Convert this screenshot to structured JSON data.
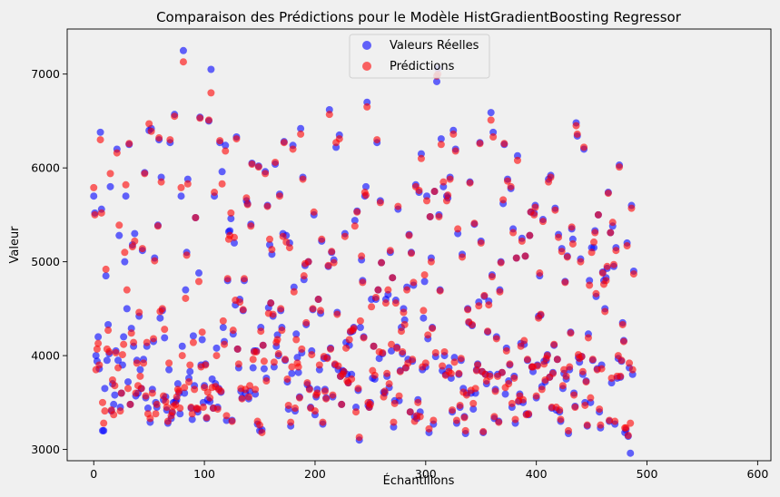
{
  "chart_data": {
    "type": "scatter",
    "title": "Comparaison des Prédictions pour le Modèle HistGradientBoosting Regressor",
    "xlabel": "Échantillons",
    "ylabel": "Valeur",
    "xlim": [
      -24,
      612
    ],
    "ylim": [
      2880,
      7480
    ],
    "xticks": [
      0,
      100,
      200,
      300,
      400,
      500,
      600
    ],
    "yticks": [
      3000,
      4000,
      5000,
      6000,
      7000
    ],
    "grid": false,
    "legend_position": "top-center",
    "series": [
      {
        "name": "Valeurs Réelles",
        "color": "#0000ff",
        "values": [
          5700,
          5520,
          4000,
          3940,
          4200,
          3860,
          6380,
          5560,
          3200,
          3200,
          3650,
          4850,
          3950,
          4330,
          4020,
          5800,
          3410,
          3700,
          3480,
          3580,
          4050,
          6200,
          3950,
          5280,
          3450,
          3600,
          3900,
          4200,
          5000,
          5700,
          4500,
          3720,
          6250,
          3480,
          4290,
          5180,
          4100,
          5300,
          3570,
          3950,
          3600,
          4420,
          3850,
          3650,
          5120,
          3960,
          5950,
          3550,
          4100,
          3440,
          6400,
          3290,
          6420,
          3640,
          4150,
          5040,
          3500,
          3450,
          5390,
          6300,
          4400,
          5900,
          4480,
          3530,
          4190,
          3560,
          3420,
          3280,
          3850,
          6270,
          3330,
          3390,
          3500,
          6570,
          3510,
          3530,
          3700,
          3600,
          3380,
          5700,
          4100,
          7250,
          3600,
          4700,
          5100,
          5880,
          3760,
          3830,
          3440,
          3320,
          4210,
          3680,
          5470,
          3430,
          3400,
          4880,
          6540,
          3900,
          4170,
          3500,
          3680,
          3910,
          3330,
          3530,
          6500,
          3510,
          7050,
          3750,
          3440,
          5700,
          3700,
          4080,
          3450,
          3650,
          6270,
          3610,
          5960,
          4300,
          4150,
          6240,
          3310,
          4800,
          5320,
          5330,
          5460,
          3310,
          4230,
          5200,
          4540,
          6330,
          4070,
          3870,
          4600,
          3620,
          3550,
          4480,
          4800,
          3600,
          5650,
          5620,
          3540,
          3620,
          5400,
          6050,
          3870,
          4050,
          3590,
          4050,
          3270,
          6020,
          3200,
          4300,
          3210,
          4110,
          3860,
          5960,
          3760,
          5600,
          4510,
          5180,
          4560,
          5080,
          4420,
          3880,
          6040,
          4100,
          4220,
          4000,
          5720,
          4480,
          4300,
          5300,
          6280,
          3950,
          5280,
          3720,
          3430,
          5200,
          3250,
          3810,
          6240,
          4730,
          3410,
          4230,
          3980,
          3820,
          3560,
          6420,
          4030,
          5900,
          4810,
          4960,
          4330,
          3690,
          5000,
          3650,
          3450,
          4050,
          4490,
          5500,
          3370,
          3560,
          3640,
          4600,
          3850,
          4450,
          5220,
          3270,
          3970,
          3640,
          3550,
          3980,
          4950,
          6620,
          4080,
          5100,
          3560,
          5020,
          3900,
          6220,
          4460,
          3850,
          6350,
          3780,
          3480,
          3840,
          3830,
          5300,
          4140,
          3800,
          3710,
          4110,
          4250,
          3800,
          4260,
          4300,
          5440,
          3450,
          5540,
          3630,
          3100,
          4300,
          5020,
          4800,
          4200,
          5700,
          5800,
          6700,
          3470,
          3450,
          3500,
          4600,
          3760,
          4100,
          3750,
          4600,
          6270,
          4700,
          3970,
          5650,
          4990,
          4020,
          3610,
          3600,
          4600,
          3780,
          4650,
          3660,
          5100,
          4050,
          4830,
          3240,
          3520,
          4590,
          4090,
          5560,
          3520,
          3840,
          4300,
          4020,
          4500,
          4380,
          3870,
          4730,
          3960,
          5290,
          3400,
          5100,
          3940,
          4750,
          3350,
          5820,
          3330,
          3530,
          5740,
          3400,
          6150,
          3850,
          4400,
          4790,
          3880,
          5700,
          4180,
          3180,
          5480,
          5040,
          4300,
          3270,
          5750,
          3990,
          6920,
          7060,
          5500,
          4700,
          6310,
          3840,
          5800,
          4000,
          3800,
          5700,
          5680,
          3870,
          5900,
          3760,
          3400,
          6400,
          3980,
          6200,
          3280,
          5300,
          3800,
          3450,
          3950,
          5080,
          3650,
          3350,
          3170,
          3600,
          4500,
          4350,
          5850,
          3600,
          4320,
          3430,
          5400,
          3600,
          3850,
          3910,
          4570,
          6270,
          5220,
          3830,
          3180,
          4630,
          3800,
          3700,
          4250,
          4580,
          3800,
          6590,
          4860,
          6380,
          3330,
          3640,
          4200,
          3800,
          3300,
          4700,
          5000,
          3820,
          5620,
          6250,
          3590,
          4080,
          5880,
          3730,
          3900,
          5780,
          3450,
          5350,
          3780,
          3280,
          5040,
          6130,
          3510,
          3590,
          4130,
          5250,
          3500,
          4120,
          5060,
          3380,
          3950,
          3370,
          5280,
          5530,
          3880,
          3830,
          5520,
          5600,
          3550,
          3900,
          4420,
          4850,
          4430,
          3670,
          5450,
          3940,
          3720,
          3950,
          4010,
          5880,
          3770,
          5920,
          3440,
          3820,
          4110,
          5570,
          3420,
          3960,
          5290,
          3400,
          3300,
          5140,
          3650,
          3810,
          4790,
          3750,
          5060,
          3170,
          3850,
          4250,
          5350,
          5240,
          3600,
          3460,
          6480,
          6340,
          3980,
          3930,
          5030,
          3990,
          3800,
          6200,
          3500,
          3730,
          3250,
          4230,
          4800,
          3500,
          5150,
          3950,
          5150,
          5330,
          4630,
          3860,
          5500,
          3400,
          3230,
          3900,
          4890,
          4800,
          4500,
          4830,
          4930,
          5740,
          3300,
          5310,
          3710,
          5380,
          4950,
          3270,
          5150,
          3760,
          3970,
          6030,
          3770,
          3940,
          4350,
          4160,
          3180,
          3210,
          5200,
          3140,
          3870,
          2960,
          5600,
          3800,
          4900
        ]
      },
      {
        "name": "Prédictions",
        "color": "#ff0000",
        "values": [
          5790,
          5500,
          3850,
          4070,
          4130,
          3900,
          6300,
          5520,
          3500,
          3280,
          3410,
          4920,
          4070,
          4270,
          4040,
          5940,
          3420,
          3740,
          3370,
          3680,
          4030,
          6160,
          3870,
          5390,
          3410,
          3600,
          4010,
          4120,
          5100,
          5820,
          4700,
          3650,
          6260,
          3480,
          4240,
          5160,
          4140,
          5220,
          3600,
          3920,
          3680,
          4460,
          3780,
          3650,
          5140,
          3920,
          5940,
          3570,
          4140,
          3380,
          6470,
          3330,
          6390,
          3600,
          4180,
          5010,
          3380,
          3480,
          5380,
          6320,
          4470,
          5850,
          4500,
          3570,
          4280,
          3510,
          3450,
          3300,
          3920,
          6300,
          3360,
          3400,
          3460,
          6550,
          3480,
          3560,
          3640,
          3620,
          3440,
          5790,
          4000,
          7130,
          3660,
          4610,
          5070,
          5830,
          3720,
          3900,
          3450,
          3380,
          4140,
          3640,
          5470,
          3440,
          3430,
          4790,
          6530,
          3880,
          4250,
          3450,
          3660,
          3900,
          3340,
          3610,
          6510,
          3550,
          6800,
          3660,
          3440,
          5740,
          3670,
          4000,
          3430,
          3640,
          6290,
          3620,
          5830,
          4370,
          4120,
          6180,
          3360,
          4820,
          5240,
          5280,
          5520,
          3300,
          4270,
          5260,
          4590,
          6310,
          4070,
          3910,
          4570,
          3650,
          3540,
          4490,
          4820,
          3640,
          5680,
          5610,
          3560,
          3680,
          5380,
          6040,
          3960,
          4040,
          3640,
          4040,
          3300,
          6010,
          3260,
          4260,
          3180,
          4110,
          3940,
          5940,
          3730,
          5590,
          4450,
          5240,
          4560,
          5130,
          4440,
          3930,
          6060,
          4140,
          4170,
          4020,
          5700,
          4500,
          4270,
          5270,
          6270,
          3960,
          5210,
          3750,
          3470,
          5150,
          3290,
          3880,
          6200,
          4680,
          3440,
          4170,
          3920,
          3880,
          3550,
          6360,
          4070,
          5880,
          4850,
          4980,
          4350,
          3710,
          5000,
          3640,
          3440,
          4010,
          4500,
          5530,
          3410,
          3580,
          3600,
          4600,
          3900,
          4480,
          5240,
          3290,
          3990,
          3620,
          3540,
          3970,
          4960,
          6570,
          4070,
          5110,
          3580,
          4990,
          3910,
          6270,
          4440,
          3890,
          6310,
          3780,
          3480,
          3800,
          3830,
          5270,
          4080,
          3730,
          3710,
          4170,
          4260,
          3750,
          4270,
          4290,
          5380,
          3400,
          5530,
          3650,
          3130,
          4370,
          5060,
          4780,
          4190,
          5740,
          5710,
          6650,
          3500,
          3450,
          3480,
          4520,
          3840,
          4100,
          3790,
          4620,
          6300,
          4700,
          4040,
          5630,
          4990,
          4030,
          3560,
          3620,
          4560,
          3810,
          4700,
          3700,
          5120,
          4120,
          4830,
          3290,
          3490,
          4560,
          4080,
          5590,
          3570,
          3830,
          4260,
          4040,
          4460,
          4330,
          3870,
          4700,
          3920,
          5280,
          3400,
          5090,
          3960,
          4780,
          3300,
          5800,
          3360,
          3500,
          5760,
          3350,
          6100,
          3880,
          4480,
          4860,
          3920,
          5650,
          4220,
          3220,
          5480,
          5000,
          4290,
          3310,
          5750,
          4030,
          6980,
          7000,
          5480,
          4690,
          6250,
          3890,
          5850,
          4040,
          3790,
          5650,
          5710,
          3830,
          5880,
          3810,
          3420,
          6360,
          3930,
          6180,
          3310,
          5350,
          3810,
          3470,
          3970,
          5050,
          3610,
          3340,
          3200,
          3580,
          4490,
          4360,
          5840,
          3630,
          4330,
          3490,
          5410,
          3650,
          3840,
          3900,
          4530,
          6260,
          5200,
          3830,
          3190,
          4640,
          3800,
          3730,
          4260,
          4540,
          3780,
          6510,
          4840,
          6330,
          3350,
          3620,
          4180,
          3780,
          3290,
          4680,
          4990,
          3820,
          5660,
          6260,
          3660,
          4050,
          5860,
          3700,
          3910,
          5800,
          3490,
          5310,
          3760,
          3320,
          5040,
          6080,
          3520,
          3570,
          4100,
          5220,
          3530,
          4160,
          5060,
          3370,
          3960,
          3380,
          5280,
          5530,
          3880,
          3880,
          5500,
          5580,
          3570,
          3890,
          4400,
          4880,
          4440,
          3640,
          5430,
          3910,
          3740,
          3970,
          4000,
          5850,
          3770,
          5900,
          3450,
          3810,
          4120,
          5550,
          3450,
          3960,
          5260,
          3420,
          3320,
          5110,
          3680,
          3850,
          4780,
          3780,
          5050,
          3200,
          3880,
          4240,
          5370,
          5190,
          3580,
          3450,
          6450,
          6360,
          4010,
          3970,
          5000,
          3990,
          3830,
          6220,
          3470,
          3720,
          3260,
          4190,
          4750,
          3550,
          5100,
          3960,
          5210,
          5310,
          4660,
          3850,
          5500,
          3430,
          3260,
          3860,
          4880,
          4760,
          4470,
          4800,
          4950,
          5730,
          3310,
          5310,
          3760,
          5420,
          4970,
          3300,
          5120,
          3780,
          4000,
          6010,
          3780,
          3950,
          4330,
          4150,
          3230,
          3230,
          5170,
          3150,
          3920,
          3280,
          5570,
          3850,
          4870
        ]
      }
    ]
  }
}
